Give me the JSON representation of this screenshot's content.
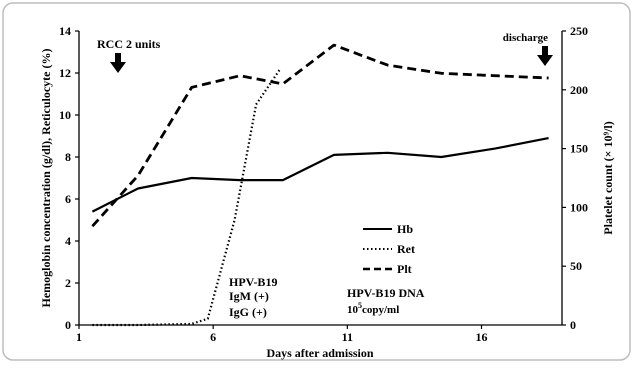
{
  "chart_data": {
    "type": "line",
    "xlabel": "Days after admission",
    "ylabel_left": "Hemoglobin concentration (g/dl),  Reticulocyte (%)",
    "ylabel_right": "Platelet count (× 10⁹/l)",
    "xlim": [
      1,
      19
    ],
    "ylim_left": [
      0,
      14
    ],
    "ylim_right": [
      0,
      250
    ],
    "x_ticks": [
      1,
      6,
      11,
      16
    ],
    "y_ticks_left": [
      0,
      2,
      4,
      6,
      8,
      10,
      12,
      14
    ],
    "y_ticks_right": [
      0,
      50,
      100,
      150,
      200,
      250
    ],
    "grid": false,
    "legend_placement": "center-right",
    "series": [
      {
        "name": "Hb",
        "axis": "left",
        "style": "solid",
        "x": [
          1.5,
          3.2,
          5.2,
          7.0,
          8.6,
          10.5,
          12.5,
          14.5,
          16.5,
          18.5
        ],
        "y": [
          5.4,
          6.5,
          7.0,
          6.9,
          6.9,
          8.1,
          8.2,
          8.0,
          8.4,
          8.9
        ]
      },
      {
        "name": "Ret",
        "axis": "left",
        "style": "dotted",
        "x": [
          1.5,
          3.2,
          5.2,
          5.8,
          6.8,
          7.6,
          8.5
        ],
        "y": [
          0.0,
          0.0,
          0.05,
          0.3,
          5.0,
          10.5,
          12.2
        ]
      },
      {
        "name": "Plt",
        "axis": "right",
        "style": "dashed",
        "x": [
          1.5,
          3.2,
          5.2,
          7.0,
          8.6,
          10.5,
          12.5,
          14.5,
          16.5,
          18.5
        ],
        "y": [
          84,
          127,
          202,
          212,
          205,
          238,
          221,
          214,
          212,
          210
        ]
      }
    ],
    "annotations": {
      "rcc": "RCC 2 units",
      "discharge": "discharge",
      "hpv_title": "HPV-B19",
      "igm": "IgM  (+)",
      "igg": "IgG  (+)",
      "dna_title": "HPV-B19 DNA",
      "dna_mantissa": "10",
      "dna_exp": "5",
      "dna_unit": "copy/ml"
    }
  }
}
